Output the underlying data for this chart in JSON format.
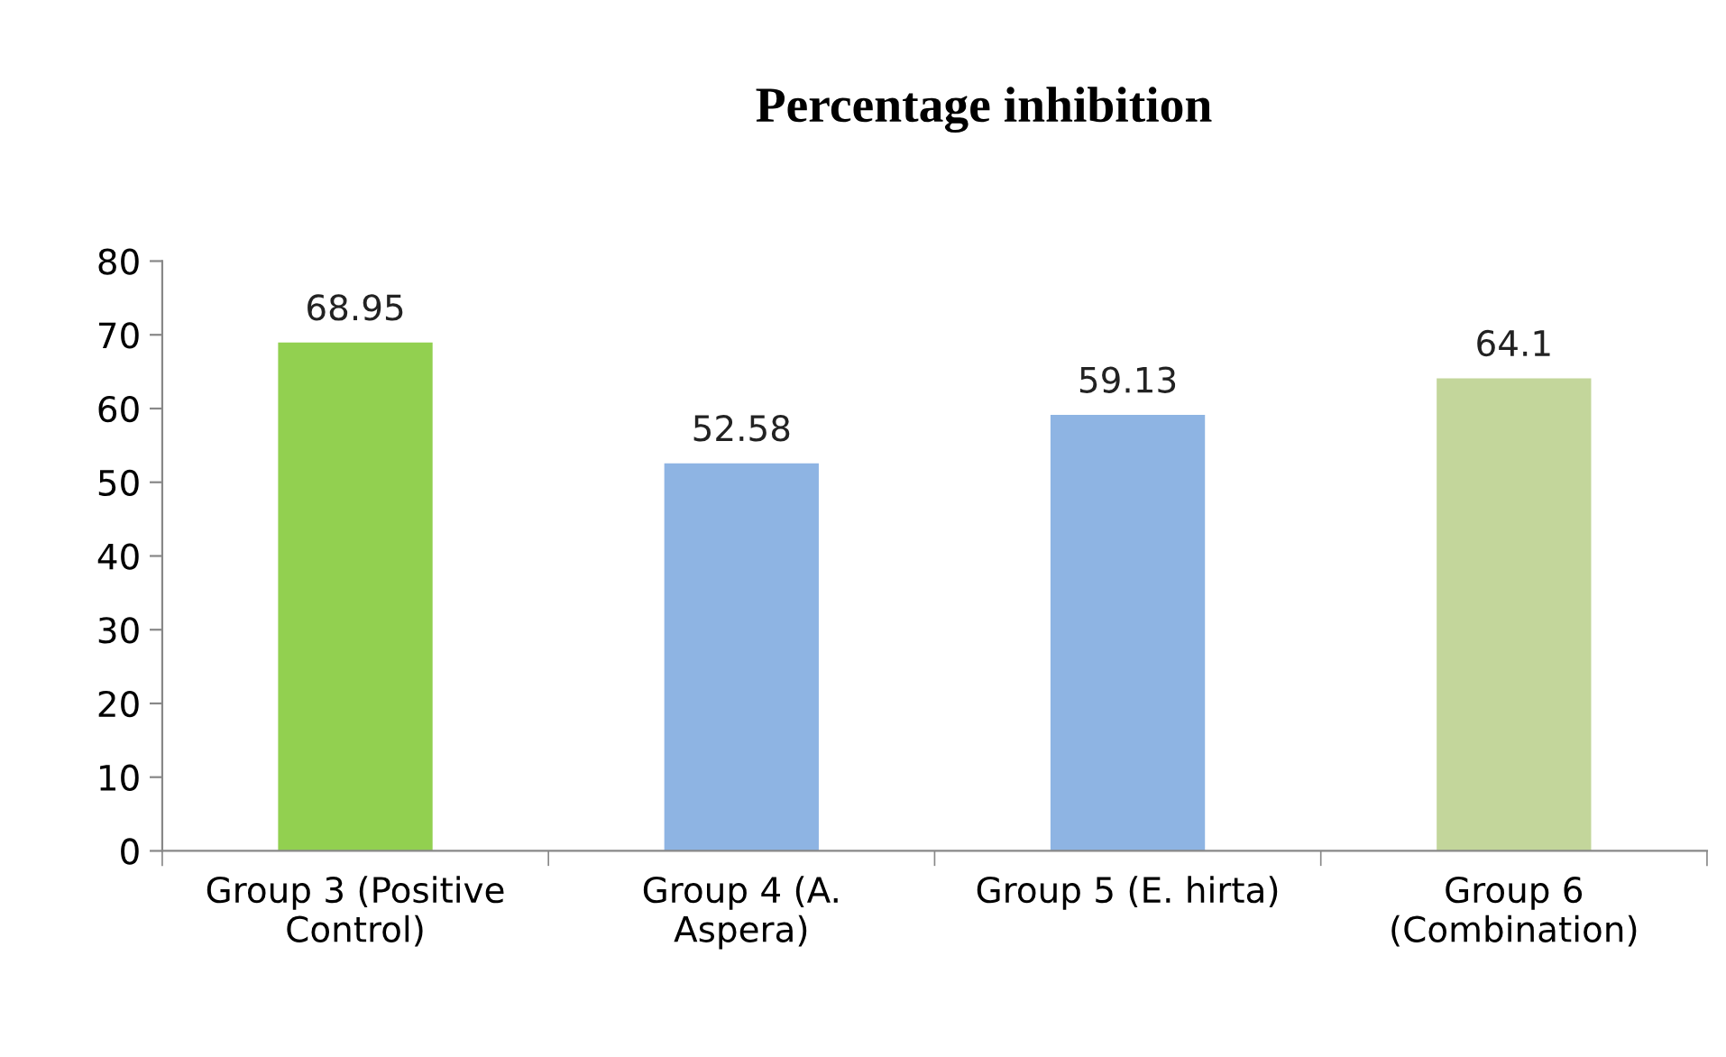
{
  "chart_data": {
    "type": "bar",
    "title": "Percentage inhibition",
    "categories": [
      "Group 3 (Positive\nControl)",
      "Group 4 (A.\nAspera)",
      "Group 5 (E. hirta)",
      "Group 6\n(Combination)"
    ],
    "values": [
      68.95,
      52.58,
      59.13,
      64.1
    ],
    "colors": [
      "#92d050",
      "#8eb4e3",
      "#8eb4e3",
      "#c3d69b"
    ],
    "ylim": [
      0,
      80
    ],
    "yticks": [
      0,
      10,
      20,
      30,
      40,
      50,
      60,
      70,
      80
    ],
    "data_labels": true,
    "grid": false,
    "legend": false
  }
}
